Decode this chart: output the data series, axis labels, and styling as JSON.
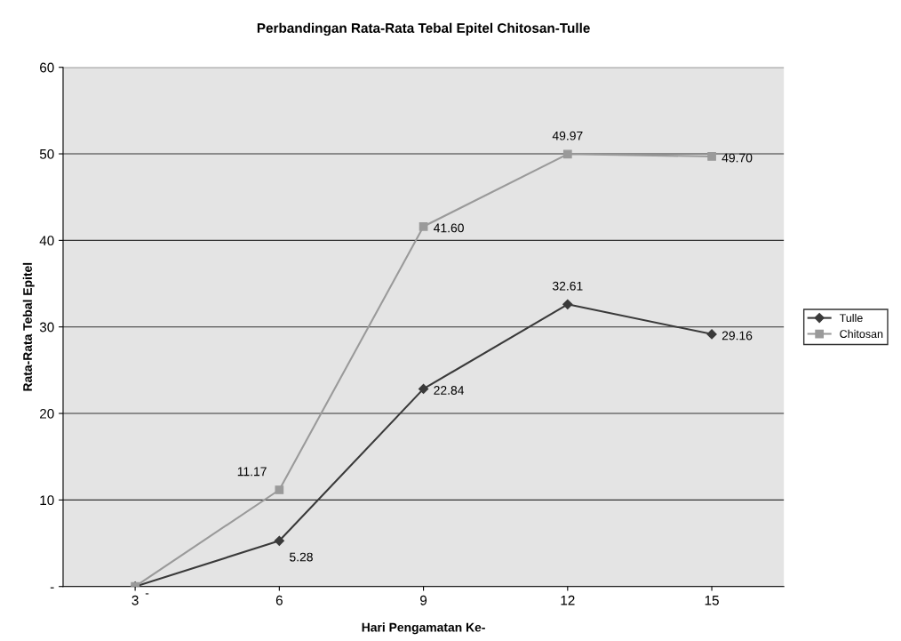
{
  "chart_data": {
    "type": "line",
    "title": "Perbandingan Rata-Rata Tebal Epitel Chitosan-Tulle",
    "xlabel": "Hari Pengamatan Ke-",
    "ylabel": "Rata-Rata Tebal Epitel",
    "categories": [
      "3",
      "6",
      "9",
      "12",
      "15"
    ],
    "series": [
      {
        "name": "Tulle",
        "color": "#3a3a3a",
        "marker": "diamond",
        "values": [
          0,
          5.28,
          22.84,
          32.61,
          29.16
        ],
        "value_labels": [
          "-",
          "5.28",
          "22.84",
          "32.61",
          "29.16"
        ]
      },
      {
        "name": "Chitosan",
        "color": "#9a9a9a",
        "marker": "square",
        "values": [
          0,
          11.17,
          41.6,
          49.97,
          49.7
        ],
        "value_labels": [
          null,
          "11.17",
          "41.60",
          "49.97",
          "49.70"
        ]
      }
    ],
    "ylim": [
      0,
      60
    ],
    "yticks": [
      {
        "value": 0,
        "label": "-"
      },
      10,
      20,
      30,
      40,
      50,
      60
    ],
    "grid": "y",
    "legend": "right",
    "line_style": "solid"
  }
}
